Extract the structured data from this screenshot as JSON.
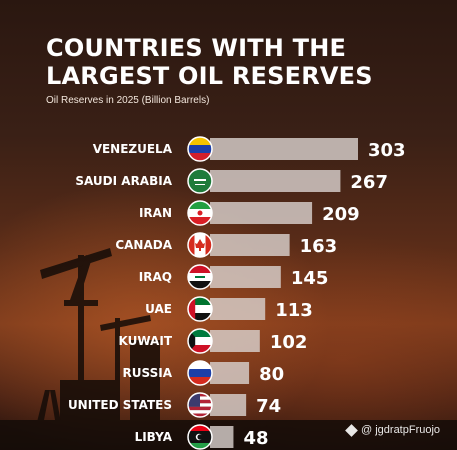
{
  "header": {
    "title_line1": "COUNTRIES WITH THE",
    "title_line2": "LARGEST OIL RESERVES",
    "subtitle": "Oil Reserves in 2025 (Billion Barrels)"
  },
  "watermark": {
    "text": "@ jgdratpFruojo",
    "icon": "binance-diamond-icon"
  },
  "chart_data": {
    "type": "bar",
    "orientation": "horizontal",
    "title": "COUNTRIES WITH THE LARGEST OIL RESERVES",
    "subtitle": "Oil Reserves in 2025 (Billion Barrels)",
    "categories": [
      "VENEZUELA",
      "SAUDI ARABIA",
      "IRAN",
      "CANADA",
      "IRAQ",
      "UAE",
      "KUWAIT",
      "RUSSIA",
      "UNITED STATES",
      "LIBYA"
    ],
    "values": [
      303,
      267,
      209,
      163,
      145,
      113,
      102,
      80,
      74,
      48
    ],
    "flags": [
      "flag-venezuela-icon",
      "flag-saudi-arabia-icon",
      "flag-iran-icon",
      "flag-canada-icon",
      "flag-iraq-icon",
      "flag-uae-icon",
      "flag-kuwait-icon",
      "flag-russia-icon",
      "flag-united-states-icon",
      "flag-libya-icon"
    ],
    "data_labels": true,
    "grid": false,
    "bar_color": "#d8d0cc"
  }
}
